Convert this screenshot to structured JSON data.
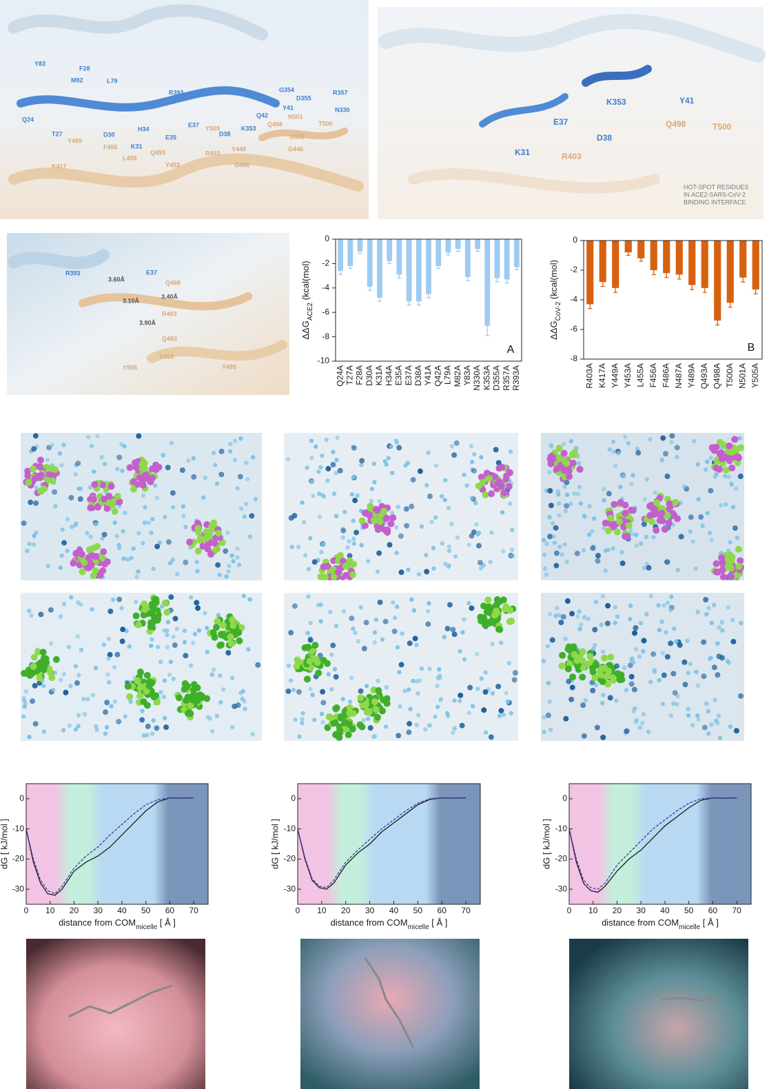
{
  "panels": {
    "interface_overview": {
      "ace2": {
        "color": "#3f7fcc",
        "labels": [
          "Y83",
          "F28",
          "M82",
          "L79",
          "Q24",
          "T27",
          "D30",
          "H34",
          "K31",
          "E35",
          "E37",
          "R393",
          "G354",
          "D355",
          "R357",
          "N330",
          "Y41",
          "Q42",
          "K353",
          "D38"
        ]
      },
      "cov2": {
        "color": "#d9a775",
        "labels": [
          "Y505",
          "N501",
          "T500",
          "Q498",
          "G502",
          "G446",
          "Y449",
          "R403",
          "Q493",
          "L455",
          "F456",
          "K417",
          "Y453",
          "G496",
          "Y489"
        ]
      }
    },
    "hotspots": {
      "ace2": {
        "color": "#3f7fcc",
        "labels": [
          "K31",
          "E37",
          "D38",
          "K353",
          "Y41"
        ]
      },
      "cov2": {
        "color": "#d9a775",
        "labels": [
          "R403",
          "Q498",
          "T500"
        ]
      },
      "legend": [
        "HOT-SPOT RESIDUES",
        "IN ACE2-SARS-CoV-2",
        "BINDING INTERFACE"
      ]
    },
    "contacts": {
      "ace2": {
        "color": "#3f7fcc",
        "labels": [
          "R393",
          "E37"
        ]
      },
      "cov2": {
        "color": "#d9a775",
        "labels": [
          "Q498",
          "R403",
          "Y505",
          "Y453",
          "Q493",
          "Y495"
        ]
      },
      "distances": {
        "color": "#555555",
        "labels": [
          "3.60Å",
          "3.10Å",
          "3.40Å",
          "3.90Å"
        ]
      }
    }
  },
  "chart_data": [
    {
      "type": "bar",
      "ylabel": "ΔΔG",
      "ylabel_sub": "ACE2",
      "ylabel_unit": " (kcal(mol)",
      "annotation": "A",
      "categories": [
        "Q24A",
        "T27A",
        "F28A",
        "D30A",
        "K31A",
        "H34A",
        "E35A",
        "E37A",
        "D38A",
        "Y41A",
        "Q42A",
        "L79A",
        "M82A",
        "Y83A",
        "N330A",
        "K353A",
        "D355A",
        "R357A",
        "R393A"
      ],
      "values": [
        -2.6,
        -2.2,
        -1.0,
        -3.9,
        -4.8,
        -1.8,
        -2.9,
        -5.1,
        -5.1,
        -4.5,
        -2.2,
        -1.1,
        -0.8,
        -3.1,
        -0.8,
        -7.1,
        -3.2,
        -3.3,
        -2.3
      ],
      "errors": [
        0.3,
        0.2,
        0.2,
        0.3,
        0.3,
        0.2,
        0.3,
        0.3,
        0.3,
        0.3,
        0.2,
        0.2,
        0.2,
        0.3,
        0.2,
        0.8,
        0.3,
        0.3,
        0.2
      ],
      "color": "#9ecbf2",
      "ylim": [
        -10,
        0
      ],
      "yticks": [
        0,
        -2,
        -4,
        -6,
        -8,
        -10
      ]
    },
    {
      "type": "bar",
      "ylabel": "ΔΔG",
      "ylabel_sub": "CoV-2",
      "ylabel_unit": " (kcal(mol)",
      "annotation": "B",
      "categories": [
        "R403A",
        "K417A",
        "Y449A",
        "Y453A",
        "L455A",
        "F456A",
        "F486A",
        "N487A",
        "Y489A",
        "Q493A",
        "Q498A",
        "T500A",
        "N501A",
        "Y505A"
      ],
      "values": [
        -4.3,
        -2.8,
        -3.2,
        -0.8,
        -1.2,
        -2.0,
        -2.2,
        -2.3,
        -3.0,
        -3.2,
        -5.4,
        -4.2,
        -2.5,
        -3.3
      ],
      "errors": [
        0.3,
        0.3,
        0.3,
        0.2,
        0.2,
        0.3,
        0.3,
        0.3,
        0.3,
        0.3,
        0.3,
        0.3,
        0.3,
        0.3
      ],
      "color": "#d7610f",
      "ylim": [
        -8,
        0
      ],
      "yticks": [
        0,
        -2,
        -4,
        -6,
        -8
      ]
    },
    {
      "type": "line",
      "ylabel": "dG [ kJ/mol ]",
      "xlabel": "distance from COM",
      "xlabel_sub": "micelle",
      "xlabel_unit": " [ Å ]",
      "x": [
        0,
        3,
        6,
        9,
        12,
        15,
        20,
        25,
        30,
        35,
        40,
        45,
        50,
        55,
        60,
        65,
        70
      ],
      "series": [
        {
          "color": "#1a1a1a",
          "linestyle": "solid",
          "values": [
            -10,
            -21,
            -28,
            -31.5,
            -32,
            -30,
            -24,
            -21,
            -19,
            -16,
            -12,
            -8,
            -4,
            -1,
            0.3,
            0.2,
            0.3
          ]
        },
        {
          "color": "#3b3bb0",
          "linestyle": "dashed",
          "values": [
            -10,
            -20,
            -27,
            -30.5,
            -31.5,
            -29,
            -23,
            -19,
            -16,
            -12,
            -8.5,
            -5,
            -2,
            -0.3,
            0.3,
            0.2,
            0.3
          ]
        }
      ],
      "xlim": [
        0,
        76
      ],
      "xticks": [
        0,
        10,
        20,
        30,
        40,
        50,
        60,
        70
      ],
      "ylim": [
        -35,
        5
      ],
      "yticks": [
        0,
        -10,
        -20,
        -30
      ]
    },
    {
      "type": "line",
      "ylabel": "dG [ kJ/mol ]",
      "xlabel": "distance from COM",
      "xlabel_sub": "micelle",
      "xlabel_unit": " [ Å ]",
      "x": [
        0,
        3,
        6,
        9,
        12,
        15,
        20,
        25,
        30,
        35,
        40,
        45,
        50,
        55,
        60,
        65,
        70
      ],
      "series": [
        {
          "color": "#1a1a1a",
          "linestyle": "solid",
          "values": [
            -10,
            -20,
            -27,
            -29.5,
            -30,
            -28,
            -22,
            -18,
            -15,
            -11,
            -8,
            -5,
            -2,
            -0.2,
            0.3,
            0.2,
            0.3
          ]
        },
        {
          "color": "#3b3bb0",
          "linestyle": "dashed",
          "values": [
            -10,
            -19.5,
            -26.5,
            -29,
            -29.5,
            -27,
            -21,
            -17,
            -13.5,
            -10,
            -7,
            -4,
            -1.5,
            0,
            0.3,
            0.2,
            0.3
          ]
        }
      ],
      "xlim": [
        0,
        76
      ],
      "xticks": [
        0,
        10,
        20,
        30,
        40,
        50,
        60,
        70
      ],
      "ylim": [
        -35,
        5
      ],
      "yticks": [
        0,
        -10,
        -20,
        -30
      ]
    },
    {
      "type": "line",
      "ylabel": "dG [ kJ/mol ]",
      "xlabel": "distance from COM",
      "xlabel_sub": "micelle",
      "xlabel_unit": " [ Å ]",
      "x": [
        0,
        3,
        6,
        9,
        12,
        15,
        20,
        25,
        30,
        35,
        40,
        45,
        50,
        55,
        60,
        65,
        70
      ],
      "series": [
        {
          "color": "#1a1a1a",
          "linestyle": "solid",
          "values": [
            -10,
            -21,
            -28,
            -30.5,
            -31,
            -29,
            -24,
            -20,
            -17,
            -13,
            -9,
            -6,
            -3,
            -0.5,
            0.3,
            0.2,
            0.3
          ]
        },
        {
          "color": "#3b3bb0",
          "linestyle": "dashed",
          "values": [
            -10,
            -20,
            -27,
            -29.5,
            -30,
            -28,
            -22,
            -18,
            -14,
            -10,
            -7,
            -4,
            -1.5,
            0,
            0.3,
            0.2,
            0.3
          ]
        }
      ],
      "xlim": [
        0,
        76
      ],
      "xticks": [
        0,
        10,
        20,
        30,
        40,
        50,
        60,
        70
      ],
      "ylim": [
        -35,
        5
      ],
      "yticks": [
        0,
        -10,
        -20,
        -30
      ]
    }
  ]
}
